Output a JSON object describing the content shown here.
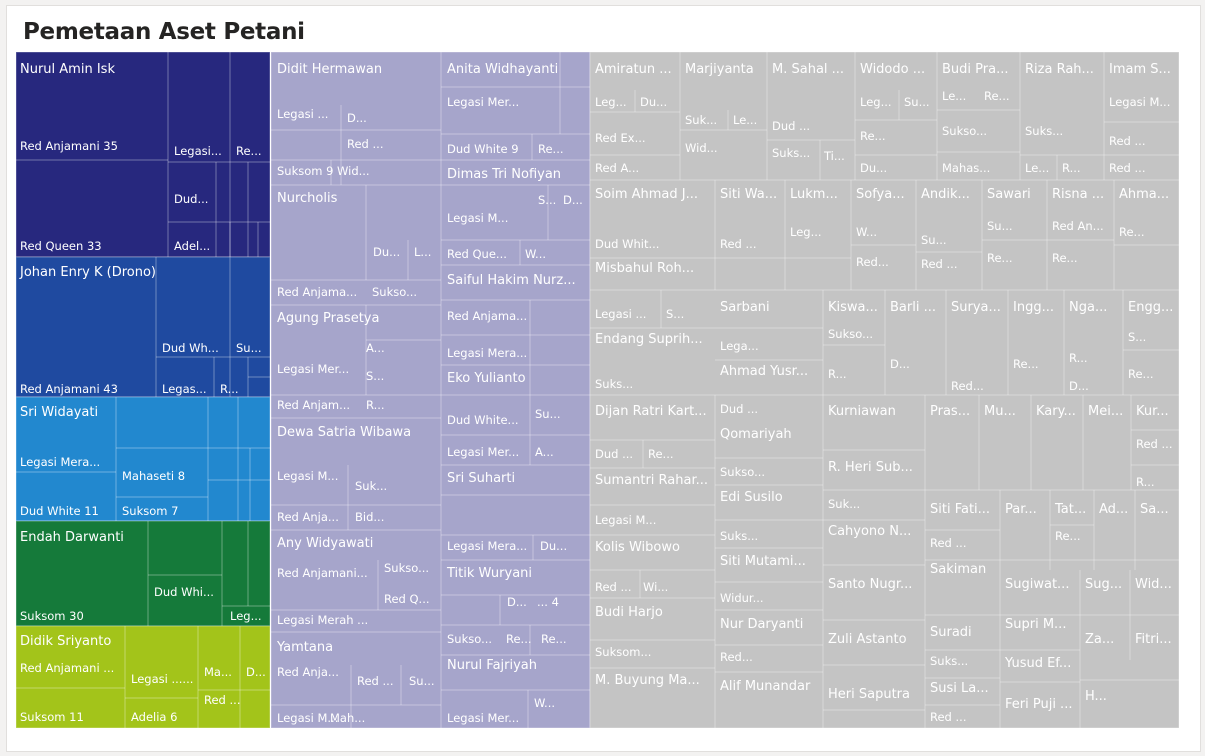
{
  "title": "Pemetaan Aset Petani",
  "colors": {
    "Nurul Amin Isk": "#27287e",
    "Red Queen 33": "#27287e",
    "Johan Enry K (Drono)": "#1f4aa0",
    "Sri Widayati": "#2288cf",
    "Endah Darwanti": "#157a3a",
    "Didik Sriyanto": "#a3c41a",
    "lavender": "#a6a5cb",
    "grey": "#c4c4c4"
  },
  "chart_data": {
    "type": "treemap",
    "title": "Pemetaan Aset Petani",
    "columns": [
      {
        "color_key": "dark",
        "groups": [
          {
            "name": "Nurul Amin Isk",
            "color": "Nurul Amin Isk",
            "items": [
              {
                "label": "Red Anjamani 35"
              },
              {
                "label": "Red Queen 33"
              },
              {
                "label": "Legasi..."
              },
              {
                "label": "Re..."
              },
              {
                "label": "Dud..."
              },
              {
                "label": "Adel..."
              }
            ]
          },
          {
            "name": "Johan Enry K (Drono)",
            "color": "Johan Enry K (Drono)",
            "items": [
              {
                "label": "Red Anjamani 43"
              },
              {
                "label": "Dud Wh..."
              },
              {
                "label": "Su..."
              },
              {
                "label": "Legas..."
              },
              {
                "label": "R..."
              }
            ]
          },
          {
            "name": "Sri Widayati",
            "color": "Sri Widayati",
            "items": [
              {
                "label": "Legasi Mera..."
              },
              {
                "label": "Dud White 11"
              },
              {
                "label": "Mahaseti 8"
              },
              {
                "label": "Suksom 7"
              }
            ]
          },
          {
            "name": "Endah Darwanti",
            "color": "Endah Darwanti",
            "items": [
              {
                "label": "Suksom 30"
              },
              {
                "label": "Dud Whi..."
              },
              {
                "label": "Leg..."
              }
            ]
          },
          {
            "name": "Didik Sriyanto",
            "color": "Didik Sriyanto",
            "items": [
              {
                "label": "Red Anjamani ..."
              },
              {
                "label": "Suksom 11"
              },
              {
                "label": "Legasi ......"
              },
              {
                "label": "Adelia 6"
              },
              {
                "label": "Ma..."
              },
              {
                "label": "D..."
              },
              {
                "label": "Red ..."
              }
            ]
          }
        ]
      }
    ]
  }
}
